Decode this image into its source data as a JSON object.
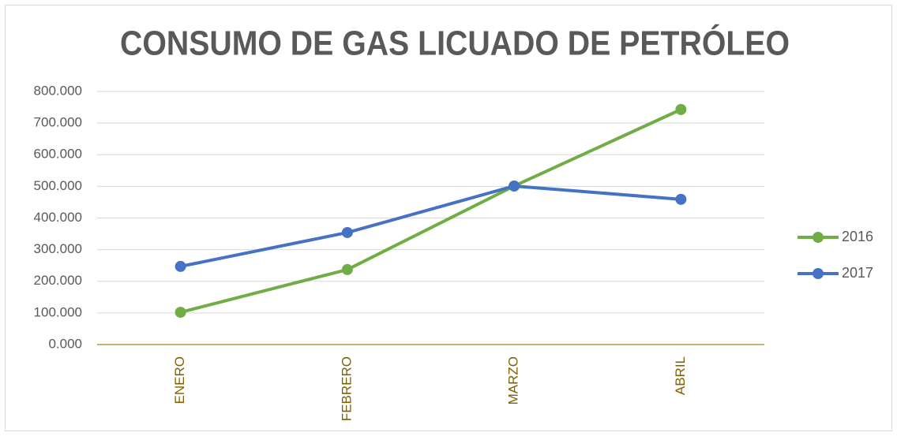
{
  "chart_data": {
    "type": "line",
    "title": "CONSUMO DE GAS LICUADO DE PETRÓLEO",
    "categories": [
      "ENERO",
      "FEBRERO",
      "MARZO",
      "ABRIL"
    ],
    "series": [
      {
        "name": "2016",
        "color": "#70ad47",
        "values": [
          102,
          237,
          501,
          743
        ]
      },
      {
        "name": "2017",
        "color": "#4472c4",
        "values": [
          247,
          354,
          501,
          459
        ]
      }
    ],
    "ylim": [
      0,
      800
    ],
    "yticks": [
      {
        "value": 0,
        "label": "0.000"
      },
      {
        "value": 100,
        "label": "100.000"
      },
      {
        "value": 200,
        "label": "200.000"
      },
      {
        "value": 300,
        "label": "300.000"
      },
      {
        "value": 400,
        "label": "400.000"
      },
      {
        "value": 500,
        "label": "500.000"
      },
      {
        "value": 600,
        "label": "600.000"
      },
      {
        "value": 700,
        "label": "700.000"
      },
      {
        "value": 800,
        "label": "800.000"
      }
    ],
    "grid": true,
    "legend": "right"
  }
}
